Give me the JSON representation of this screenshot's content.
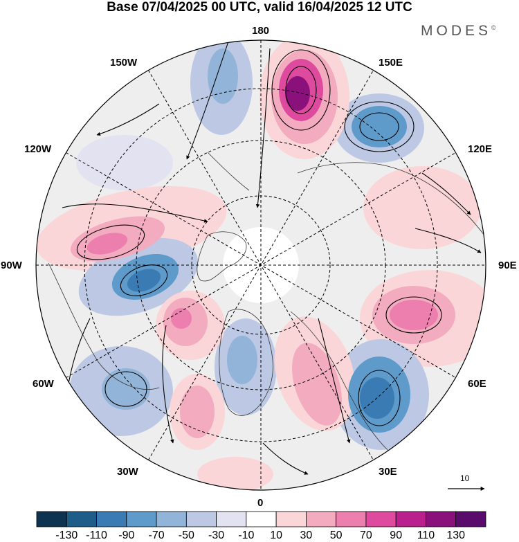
{
  "title": "Base 07/04/2025 00 UTC, valid 16/04/2025 12 UTC",
  "brand": {
    "name": "MODES",
    "mark": "©"
  },
  "longitude_labels": {
    "deg180": "180",
    "deg150E": "150E",
    "deg120E": "120E",
    "deg90E": "90E",
    "deg60E": "60E",
    "deg30E": "30E",
    "deg0": "0",
    "deg30W": "30W",
    "deg60W": "60W",
    "deg90W": "90W",
    "deg120W": "120W",
    "deg150W": "150W"
  },
  "colorbar": {
    "boundaries": [
      "-130",
      "-110",
      "-90",
      "-70",
      "-50",
      "-30",
      "-10",
      "10",
      "30",
      "50",
      "70",
      "90",
      "110",
      "130"
    ],
    "colors": [
      "#0e3350",
      "#1e5c8a",
      "#3a7bb3",
      "#5e9bcb",
      "#92b4d8",
      "#bcc8e4",
      "#e2e2f1",
      "#ffffff",
      "#fbd6d8",
      "#f3abbf",
      "#ec7fad",
      "#de4a9d",
      "#b91f8d",
      "#8a117c",
      "#5a0c6d"
    ]
  },
  "reference_vector": {
    "label": "10"
  },
  "colors": {
    "background_field": "#eeeeee",
    "coast": "#333333",
    "grid": "#000000"
  }
}
